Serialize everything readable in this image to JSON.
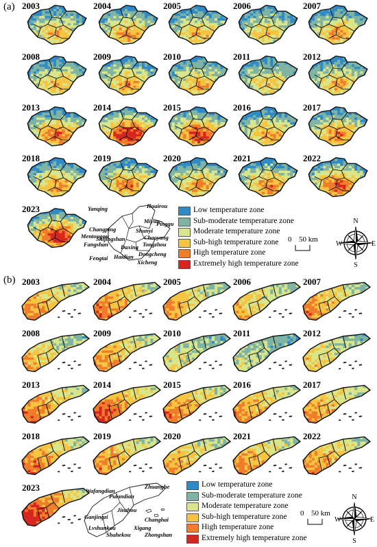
{
  "colors": {
    "low": "#2e8bc8",
    "sub_moderate": "#7fb3a3",
    "moderate": "#d8e58a",
    "sub_high": "#f5c542",
    "high": "#ef7d2b",
    "extremely_high": "#d7261e",
    "boundary": "#111111"
  },
  "panel_a": {
    "label": "(a)",
    "years": [
      "2003",
      "2004",
      "2005",
      "2006",
      "2007",
      "2008",
      "2009",
      "2010",
      "2011",
      "2012",
      "2013",
      "2014",
      "2015",
      "2016",
      "2017",
      "2018",
      "2019",
      "2020",
      "2021",
      "2022",
      "2023"
    ],
    "districts": [
      "Yanqing",
      "Huairou",
      "Miyun",
      "Pinggu",
      "Changping",
      "Shunyi",
      "Mentougou",
      "Chaoyang",
      "Shijingshan",
      "Tongzhou",
      "Fangshan",
      "Daxing",
      "Dongcheng",
      "Fengtai",
      "Haidian",
      "Xicheng"
    ],
    "legend": [
      "Low temperature zone",
      "Sub-moderate temperature zone",
      "Moderate temperature zone",
      "Sub-high temperature zone",
      "High temperature zone",
      "Extremely high temperature zone"
    ],
    "scale": {
      "zero": "0",
      "label": "50 km"
    },
    "compass": {
      "n": "N",
      "s": "S",
      "e": "E",
      "w": "W"
    }
  },
  "panel_b": {
    "label": "(b)",
    "years": [
      "2003",
      "2004",
      "2005",
      "2006",
      "2007",
      "2008",
      "2009",
      "2010",
      "2011",
      "2012",
      "2013",
      "2014",
      "2015",
      "2016",
      "2017",
      "2018",
      "2019",
      "2020",
      "2021",
      "2022",
      "2023"
    ],
    "districts": [
      "Wafangdian",
      "Zhuanghe",
      "Pulandian",
      "Ganjingzi",
      "Jinzhou",
      "Changhai",
      "Lvshunkou",
      "Xigang",
      "Zhongshan",
      "Shahekou"
    ],
    "legend": [
      "Low temperature zone",
      "Sub-moderate temperature zone",
      "Moderate temperature zone",
      "Sub-high temperature zone",
      "High temperature zone",
      "Extremely high temperature zone"
    ],
    "scale": {
      "zero": "0",
      "label": "50 km"
    },
    "compass": {
      "n": "N",
      "s": "S",
      "e": "E",
      "w": "W"
    }
  }
}
